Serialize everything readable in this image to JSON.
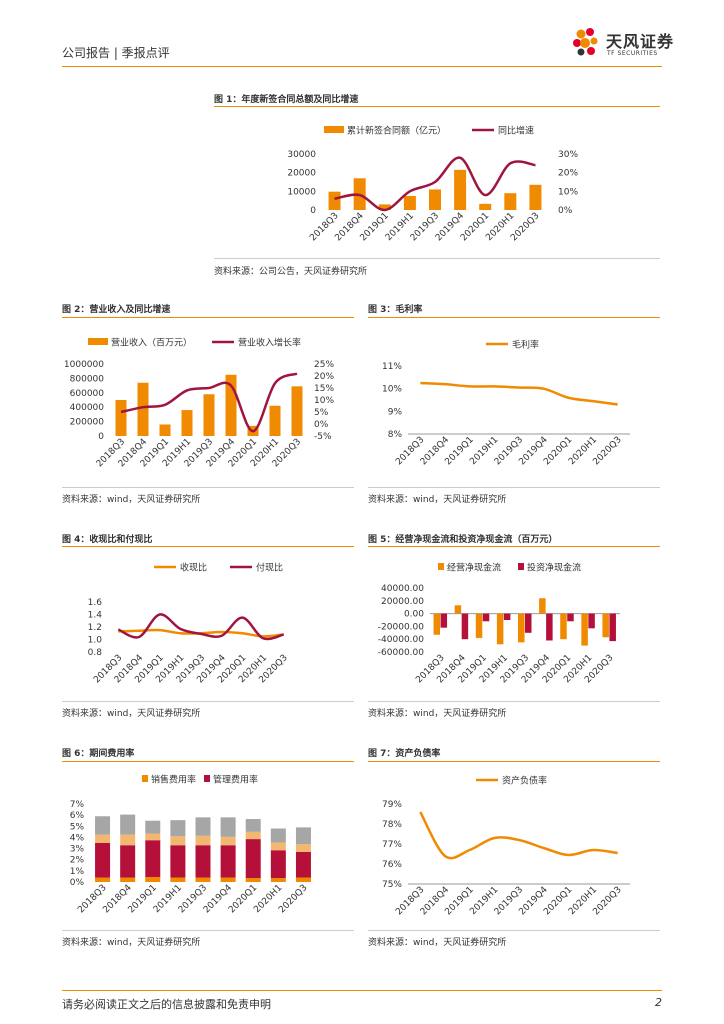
{
  "header": {
    "left": "公司报告 | 季报点评",
    "logo_main": "天风证券",
    "logo_sub": "TF SECURITIES",
    "brand_color": "#f08a00",
    "logo_colors": [
      "#e4002b",
      "#f08a00",
      "#333333"
    ]
  },
  "footer": {
    "disclaimer": "请务必阅读正文之后的信息披露和免责申明",
    "page": "2"
  },
  "figures": {
    "f1": {
      "title": "图 1：年度新签合同总额及同比增速",
      "source": "资料来源：公司公告，天风证券研究所"
    },
    "f2": {
      "title": "图 2：营业收入及同比增速",
      "source": "资料来源：wind，天风证券研究所"
    },
    "f3": {
      "title": "图 3：毛利率",
      "source": "资料来源：wind，天风证券研究所"
    },
    "f4": {
      "title": "图 4：收现比和付现比",
      "source": "资料来源：wind，天风证券研究所"
    },
    "f5": {
      "title": "图 5：经营净现金流和投资净现金流（百万元）",
      "source": "资料来源：wind，天风证券研究所"
    },
    "f6": {
      "title": "图 6：期间费用率",
      "source": "资料来源：wind，天风证券研究所"
    },
    "f7": {
      "title": "图 7：资产负债率",
      "source": "资料来源：wind，天风证券研究所"
    }
  },
  "chart_data": [
    {
      "id": "f1",
      "type": "bar",
      "categories": [
        "2018Q3",
        "2018Q4",
        "2019Q1",
        "2019H1",
        "2019Q3",
        "2019Q4",
        "2020Q1",
        "2020H1",
        "2020Q3"
      ],
      "series": [
        {
          "name": "累计新签合同额（亿元）",
          "kind": "bar",
          "axis": "left",
          "color": "#f08a00",
          "values": [
            9800,
            17000,
            3000,
            7500,
            11000,
            21500,
            3300,
            9000,
            13500
          ]
        },
        {
          "name": "同比增速",
          "kind": "line",
          "axis": "right",
          "color": "#a0153e",
          "values": [
            6,
            8,
            0,
            10,
            15,
            28,
            8,
            25,
            24
          ]
        }
      ],
      "left_ticks": [
        "30000",
        "20000",
        "10000",
        "0"
      ],
      "left_range": [
        0,
        30000
      ],
      "right_ticks": [
        "30%",
        "20%",
        "10%",
        "0%"
      ],
      "right_range": [
        0,
        30
      ]
    },
    {
      "id": "f2",
      "type": "bar",
      "categories": [
        "2018Q3",
        "2018Q4",
        "2019Q1",
        "2019H1",
        "2019Q3",
        "2019Q4",
        "2020Q1",
        "2020H1",
        "2020Q3"
      ],
      "series": [
        {
          "name": "营业收入（百万元）",
          "kind": "bar",
          "axis": "left",
          "color": "#f08a00",
          "values": [
            500000,
            740000,
            160000,
            360000,
            580000,
            850000,
            140000,
            420000,
            690000
          ]
        },
        {
          "name": "营业收入增长率",
          "kind": "line",
          "axis": "right",
          "color": "#a0153e",
          "values": [
            5,
            7,
            8,
            14,
            15,
            16,
            -3,
            17,
            21
          ]
        }
      ],
      "left_ticks": [
        "1000000",
        "800000",
        "600000",
        "400000",
        "200000",
        "0"
      ],
      "left_range": [
        0,
        1000000
      ],
      "right_ticks": [
        "25%",
        "20%",
        "15%",
        "10%",
        "5%",
        "0%",
        "-5%"
      ],
      "right_range": [
        -5,
        25
      ]
    },
    {
      "id": "f3",
      "type": "line",
      "categories": [
        "2018Q3",
        "2018Q4",
        "2019Q1",
        "2019H1",
        "2019Q3",
        "2019Q4",
        "2020Q1",
        "2020H1",
        "2020Q3"
      ],
      "series": [
        {
          "name": "毛利率",
          "kind": "line",
          "color": "#f08a00",
          "values": [
            10.25,
            10.2,
            10.1,
            10.1,
            10.05,
            10.0,
            9.6,
            9.45,
            9.3
          ]
        }
      ],
      "left_ticks": [
        "11%",
        "10%",
        "9%",
        "8%"
      ],
      "left_range": [
        8,
        11
      ]
    },
    {
      "id": "f4",
      "type": "line",
      "categories": [
        "2018Q3",
        "2018Q4",
        "2019Q1",
        "2019H1",
        "2019Q3",
        "2019Q4",
        "2020Q1",
        "2020H1",
        "2020Q3"
      ],
      "series": [
        {
          "name": "收现比",
          "kind": "line",
          "color": "#f08a00",
          "values": [
            1.13,
            1.14,
            1.15,
            1.1,
            1.1,
            1.12,
            1.1,
            1.05,
            1.08
          ]
        },
        {
          "name": "付现比",
          "kind": "line",
          "color": "#a0153e",
          "values": [
            1.16,
            1.04,
            1.4,
            1.17,
            1.09,
            1.06,
            1.35,
            1.02,
            1.08
          ]
        }
      ],
      "left_ticks": [
        "1.6",
        "1.4",
        "1.2",
        "1.0",
        "0.8"
      ],
      "left_range": [
        0.8,
        1.6
      ]
    },
    {
      "id": "f5",
      "type": "bar",
      "categories": [
        "2018Q3",
        "2018Q4",
        "2019Q1",
        "2019H1",
        "2019Q3",
        "2019Q4",
        "2020Q1",
        "2020H1",
        "2020Q3"
      ],
      "series": [
        {
          "name": "经营净现金流",
          "kind": "bar",
          "color": "#f08a00",
          "values": [
            -33000,
            13000,
            -38000,
            -48000,
            -45000,
            24000,
            -40000,
            -50000,
            -37000
          ]
        },
        {
          "name": "投资净现金流",
          "kind": "bar",
          "color": "#b5103a",
          "values": [
            -22000,
            -40000,
            -12000,
            -10000,
            -30000,
            -42000,
            -12000,
            -23000,
            -43000
          ]
        }
      ],
      "left_ticks": [
        "40000.00",
        "20000.00",
        "0.00",
        "-20000.00",
        "-40000.00",
        "-60000.00"
      ],
      "left_range": [
        -60000,
        40000
      ]
    },
    {
      "id": "f6",
      "type": "bar",
      "categories": [
        "2018Q3",
        "2018Q4",
        "2019Q1",
        "2019H1",
        "2019Q3",
        "2019Q4",
        "2020Q1",
        "2020H1",
        "2020Q3"
      ],
      "series": [
        {
          "name": "销售费用率",
          "kind": "stack",
          "color": "#f08a00",
          "values": [
            0.4,
            0.4,
            0.45,
            0.4,
            0.4,
            0.4,
            0.35,
            0.35,
            0.4
          ]
        },
        {
          "name": "管理费用率",
          "kind": "stack",
          "color": "#b5103a",
          "values": [
            3.1,
            2.9,
            3.3,
            2.9,
            2.9,
            2.9,
            3.5,
            2.5,
            2.3
          ]
        },
        {
          "name": "",
          "kind": "stack",
          "color": "#f2b872",
          "values": [
            0.75,
            0.95,
            0.6,
            0.8,
            0.85,
            0.75,
            0.65,
            0.7,
            0.7
          ]
        },
        {
          "name": "",
          "kind": "stack",
          "color": "#a6a6a6",
          "values": [
            1.65,
            1.8,
            1.15,
            1.45,
            1.65,
            1.75,
            1.15,
            1.25,
            1.5
          ]
        }
      ],
      "left_ticks": [
        "7%",
        "6%",
        "5%",
        "4%",
        "3%",
        "2%",
        "1%",
        "0%"
      ],
      "left_range": [
        0,
        7
      ]
    },
    {
      "id": "f7",
      "type": "line",
      "categories": [
        "2018Q3",
        "2018Q4",
        "2019Q1",
        "2019H1",
        "2019Q3",
        "2019Q4",
        "2020Q1",
        "2020H1",
        "2020Q3"
      ],
      "series": [
        {
          "name": "资产负债率",
          "kind": "line",
          "color": "#f08a00",
          "values": [
            78.6,
            76.4,
            76.7,
            77.3,
            77.2,
            76.8,
            76.45,
            76.7,
            76.55
          ]
        }
      ],
      "left_ticks": [
        "79%",
        "78%",
        "77%",
        "76%",
        "75%"
      ],
      "left_range": [
        75,
        79
      ]
    }
  ]
}
